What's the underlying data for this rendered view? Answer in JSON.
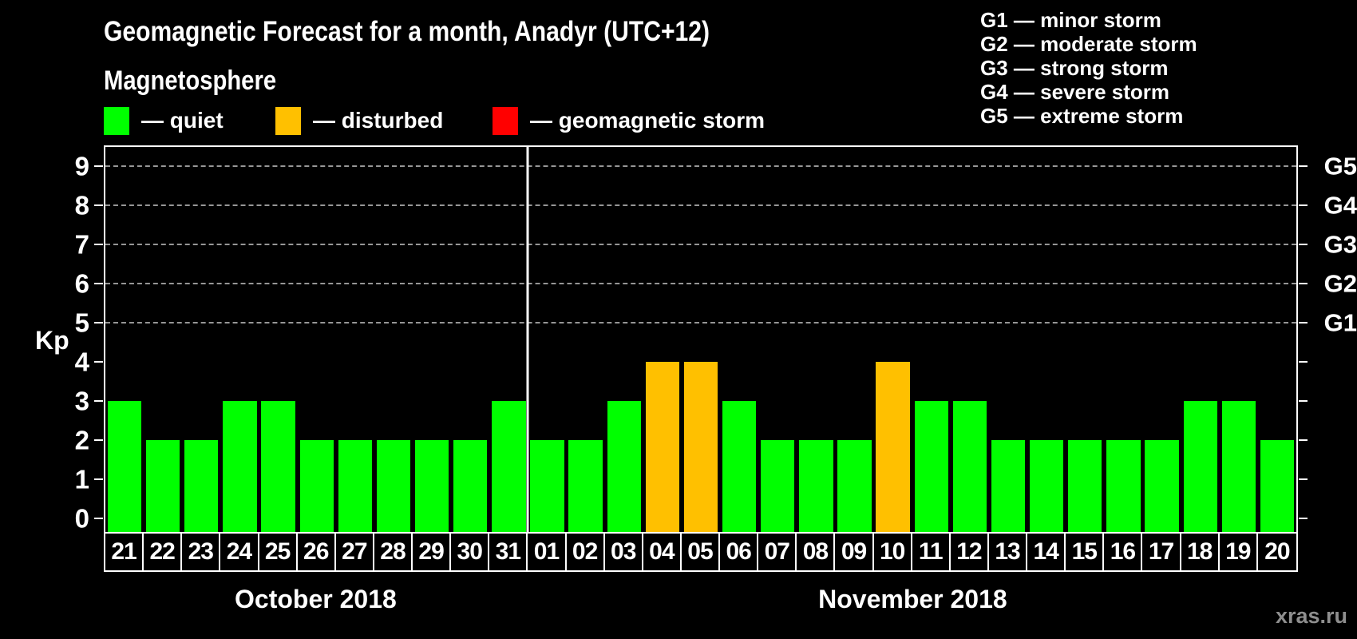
{
  "header": {
    "title": "Geomagnetic Forecast for a month, Anadyr (UTC+12)",
    "subtitle": "Magnetosphere"
  },
  "colors": {
    "quiet": "#00FF00",
    "disturbed": "#FFC000",
    "storm": "#FF0000",
    "background": "#000000",
    "foreground": "#FFFFFF",
    "grid": "#969696",
    "watermark": "#8E8E8E"
  },
  "kp_legend": [
    {
      "status": "quiet",
      "label": "— quiet"
    },
    {
      "status": "disturbed",
      "label": "— disturbed"
    },
    {
      "status": "storm",
      "label": "— geomagnetic storm"
    }
  ],
  "g_legend": [
    "G1 — minor storm",
    "G2 — moderate storm",
    "G3 — strong storm",
    "G4 — severe storm",
    "G5 — extreme storm"
  ],
  "chart_data": {
    "type": "bar",
    "title": "Geomagnetic Forecast for a month, Anadyr (UTC+12)",
    "ylabel": "Kp",
    "yticks": [
      0,
      1,
      2,
      3,
      4,
      5,
      6,
      7,
      8,
      9
    ],
    "ylim": [
      -0.35,
      9.5
    ],
    "gridline_levels": [
      5,
      6,
      7,
      8,
      9
    ],
    "right_axis_labels": [
      {
        "kp": 5,
        "label": "G1"
      },
      {
        "kp": 6,
        "label": "G2"
      },
      {
        "kp": 7,
        "label": "G3"
      },
      {
        "kp": 8,
        "label": "G4"
      },
      {
        "kp": 9,
        "label": "G5"
      }
    ],
    "month_separator_after_index": 10,
    "months": [
      {
        "label": "October 2018",
        "start": 0,
        "count": 11
      },
      {
        "label": "November 2018",
        "start": 11,
        "count": 20
      }
    ],
    "points": [
      {
        "month": "October 2018",
        "day": "21",
        "kp": 3,
        "status": "quiet"
      },
      {
        "month": "October 2018",
        "day": "22",
        "kp": 2,
        "status": "quiet"
      },
      {
        "month": "October 2018",
        "day": "23",
        "kp": 2,
        "status": "quiet"
      },
      {
        "month": "October 2018",
        "day": "24",
        "kp": 3,
        "status": "quiet"
      },
      {
        "month": "October 2018",
        "day": "25",
        "kp": 3,
        "status": "quiet"
      },
      {
        "month": "October 2018",
        "day": "26",
        "kp": 2,
        "status": "quiet"
      },
      {
        "month": "October 2018",
        "day": "27",
        "kp": 2,
        "status": "quiet"
      },
      {
        "month": "October 2018",
        "day": "28",
        "kp": 2,
        "status": "quiet"
      },
      {
        "month": "October 2018",
        "day": "29",
        "kp": 2,
        "status": "quiet"
      },
      {
        "month": "October 2018",
        "day": "30",
        "kp": 2,
        "status": "quiet"
      },
      {
        "month": "October 2018",
        "day": "31",
        "kp": 3,
        "status": "quiet"
      },
      {
        "month": "November 2018",
        "day": "01",
        "kp": 2,
        "status": "quiet"
      },
      {
        "month": "November 2018",
        "day": "02",
        "kp": 2,
        "status": "quiet"
      },
      {
        "month": "November 2018",
        "day": "03",
        "kp": 3,
        "status": "quiet"
      },
      {
        "month": "November 2018",
        "day": "04",
        "kp": 4,
        "status": "disturbed"
      },
      {
        "month": "November 2018",
        "day": "05",
        "kp": 4,
        "status": "disturbed"
      },
      {
        "month": "November 2018",
        "day": "06",
        "kp": 3,
        "status": "quiet"
      },
      {
        "month": "November 2018",
        "day": "07",
        "kp": 2,
        "status": "quiet"
      },
      {
        "month": "November 2018",
        "day": "08",
        "kp": 2,
        "status": "quiet"
      },
      {
        "month": "November 2018",
        "day": "09",
        "kp": 2,
        "status": "quiet"
      },
      {
        "month": "November 2018",
        "day": "10",
        "kp": 4,
        "status": "disturbed"
      },
      {
        "month": "November 2018",
        "day": "11",
        "kp": 3,
        "status": "quiet"
      },
      {
        "month": "November 2018",
        "day": "12",
        "kp": 3,
        "status": "quiet"
      },
      {
        "month": "November 2018",
        "day": "13",
        "kp": 2,
        "status": "quiet"
      },
      {
        "month": "November 2018",
        "day": "14",
        "kp": 2,
        "status": "quiet"
      },
      {
        "month": "November 2018",
        "day": "15",
        "kp": 2,
        "status": "quiet"
      },
      {
        "month": "November 2018",
        "day": "16",
        "kp": 2,
        "status": "quiet"
      },
      {
        "month": "November 2018",
        "day": "17",
        "kp": 2,
        "status": "quiet"
      },
      {
        "month": "November 2018",
        "day": "18",
        "kp": 3,
        "status": "quiet"
      },
      {
        "month": "November 2018",
        "day": "19",
        "kp": 3,
        "status": "quiet"
      },
      {
        "month": "November 2018",
        "day": "20",
        "kp": 2,
        "status": "quiet"
      }
    ]
  },
  "footer": {
    "watermark": "xras.ru"
  }
}
